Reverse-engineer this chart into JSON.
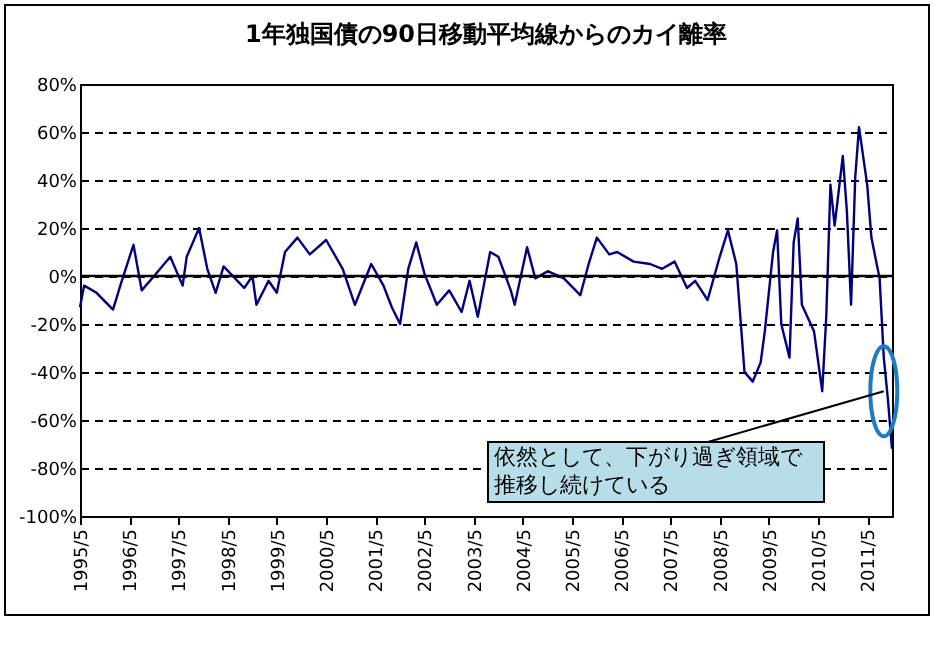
{
  "chart_data": {
    "type": "line",
    "title": "1年独国債の90日移動平均線からのカイ離率",
    "x": [
      "1995-05",
      "1995-06",
      "1995-09",
      "1996-01",
      "1996-03",
      "1996-06",
      "1996-08",
      "1996-11",
      "1997-03",
      "1997-06",
      "1997-07",
      "1997-10",
      "1997-12",
      "1998-02",
      "1998-04",
      "1998-09",
      "1998-11",
      "1998-12",
      "1999-03",
      "1999-05",
      "1999-07",
      "1999-10",
      "2000-01",
      "2000-05",
      "2000-09",
      "2000-12",
      "2001-04",
      "2001-07",
      "2001-09",
      "2001-11",
      "2002-01",
      "2002-03",
      "2002-05",
      "2002-08",
      "2002-11",
      "2003-02",
      "2003-04",
      "2003-06",
      "2003-09",
      "2003-11",
      "2004-02",
      "2004-03",
      "2004-06",
      "2004-08",
      "2004-11",
      "2005-03",
      "2005-07",
      "2005-09",
      "2005-11",
      "2006-02",
      "2006-04",
      "2006-08",
      "2006-12",
      "2007-03",
      "2007-06",
      "2007-09",
      "2007-11",
      "2008-02",
      "2008-05",
      "2008-07",
      "2008-09",
      "2008-10",
      "2008-11",
      "2009-01",
      "2009-03",
      "2009-04",
      "2009-06",
      "2009-07",
      "2009-08",
      "2009-10",
      "2009-11",
      "2009-12",
      "2010-01",
      "2010-04",
      "2010-06",
      "2010-07",
      "2010-08",
      "2010-09",
      "2010-11",
      "2010-12",
      "2011-01",
      "2011-02",
      "2011-03",
      "2011-05",
      "2011-06",
      "2011-08",
      "2011-09",
      "2011-10",
      "2011-11"
    ],
    "series": [
      {
        "color": "#000080",
        "values": [
          -13,
          -4,
          -7,
          -14,
          -3,
          13,
          -6,
          0,
          8,
          -4,
          8,
          20,
          3,
          -7,
          4,
          -5,
          0,
          -12,
          -2,
          -7,
          10,
          16,
          9,
          15,
          3,
          -12,
          5,
          -4,
          -13,
          -20,
          3,
          14,
          1,
          -12,
          -6,
          -15,
          -2,
          -17,
          10,
          8,
          -6,
          -12,
          12,
          -1,
          2,
          -1,
          -8,
          5,
          16,
          9,
          10,
          6,
          5,
          3,
          6,
          -5,
          -2,
          -10,
          8,
          19,
          5,
          -17,
          -40,
          -44,
          -36,
          -23,
          10,
          19,
          -20,
          -34,
          14,
          24,
          -12,
          -23,
          -48,
          -17,
          38,
          21,
          50,
          27,
          -12,
          41,
          62,
          38,
          16,
          -1,
          -34,
          -51,
          -72
        ]
      }
    ],
    "xlim": [
      "1995-05",
      "2011-11"
    ],
    "xticks": [
      {
        "value": "1995-05",
        "label": "1995/5"
      },
      {
        "value": "1996-05",
        "label": "1996/5"
      },
      {
        "value": "1997-05",
        "label": "1997/5"
      },
      {
        "value": "1998-05",
        "label": "1998/5"
      },
      {
        "value": "1999-05",
        "label": "1999/5"
      },
      {
        "value": "2000-05",
        "label": "2000/5"
      },
      {
        "value": "2001-05",
        "label": "2001/5"
      },
      {
        "value": "2002-05",
        "label": "2002/5"
      },
      {
        "value": "2003-05",
        "label": "2003/5"
      },
      {
        "value": "2004-05",
        "label": "2004/5"
      },
      {
        "value": "2005-05",
        "label": "2005/5"
      },
      {
        "value": "2006-05",
        "label": "2006/5"
      },
      {
        "value": "2007-05",
        "label": "2007/5"
      },
      {
        "value": "2008-05",
        "label": "2008/5"
      },
      {
        "value": "2009-05",
        "label": "2009/5"
      },
      {
        "value": "2010-05",
        "label": "2010/5"
      },
      {
        "value": "2011-05",
        "label": "2011/5"
      }
    ],
    "ylim": [
      -100,
      80
    ],
    "yticks": [
      {
        "value": -100,
        "label": "-100%"
      },
      {
        "value": -80,
        "label": "-80%"
      },
      {
        "value": -60,
        "label": "-60%"
      },
      {
        "value": -40,
        "label": "-40%"
      },
      {
        "value": -20,
        "label": "-20%"
      },
      {
        "value": 0,
        "label": "0%"
      },
      {
        "value": 20,
        "label": "20%"
      },
      {
        "value": 40,
        "label": "40%"
      },
      {
        "value": 60,
        "label": "60%"
      },
      {
        "value": 80,
        "label": "80%"
      }
    ],
    "grid": "y",
    "ref_lines": [
      {
        "axis": "y",
        "value": 0,
        "color": "#000000"
      }
    ],
    "annotations": [
      {
        "text": "依然として、下がり過ぎ領域で推移し続けている",
        "x": "2011-09",
        "y": -48
      }
    ]
  }
}
